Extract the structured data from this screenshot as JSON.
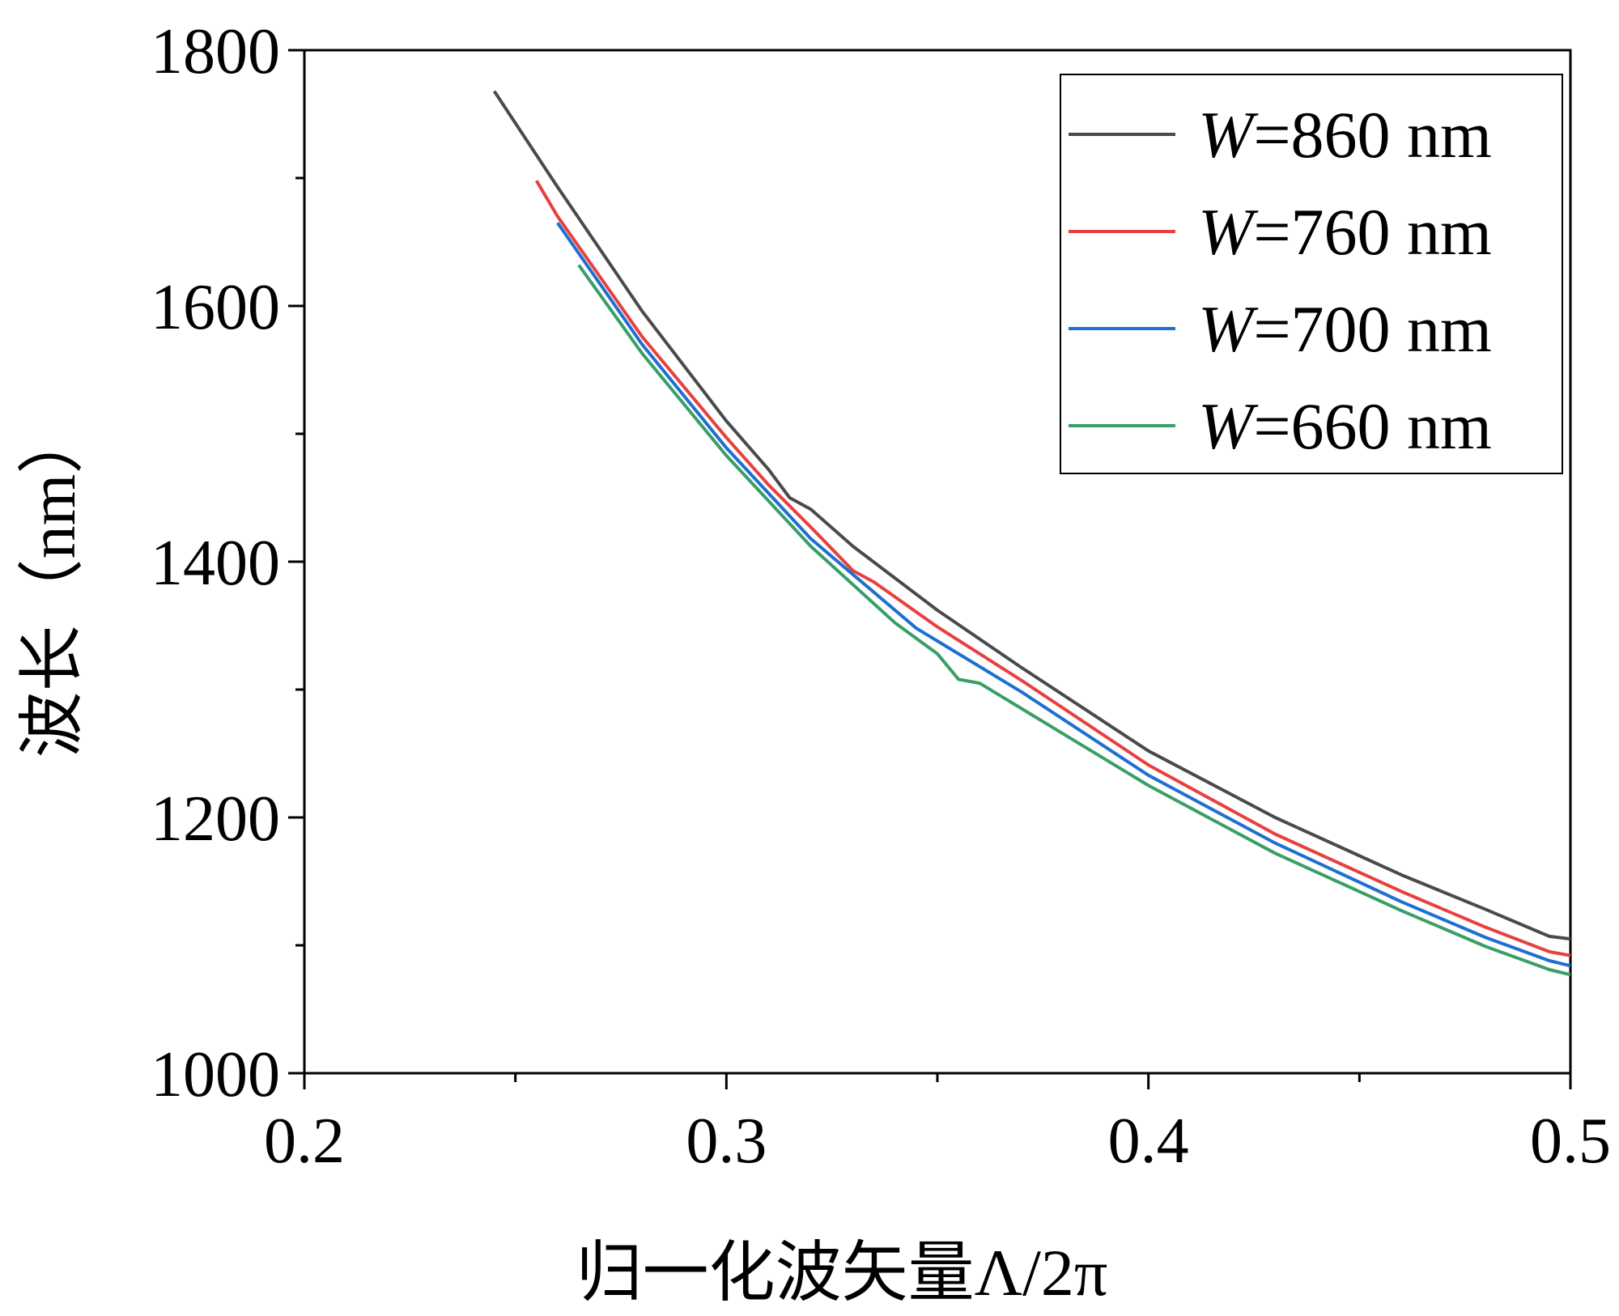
{
  "chart_data": {
    "type": "line",
    "xlabel": "归一化波矢量Λ/2π",
    "ylabel": "波长（nm）",
    "xlim": [
      0.2,
      0.5
    ],
    "ylim": [
      1000,
      1800
    ],
    "xticks": [
      "0.2",
      "0.3",
      "0.4",
      "0.5"
    ],
    "yticks": [
      "1000",
      "1200",
      "1400",
      "1600",
      "1800"
    ],
    "grid": false,
    "legend_position": "top-right",
    "series": [
      {
        "name": "W=860 nm",
        "label_var": "W",
        "label_rest": "=860 nm",
        "color": "#4a4a4a",
        "x": [
          0.245,
          0.26,
          0.28,
          0.3,
          0.31,
          0.315,
          0.32,
          0.33,
          0.35,
          0.37,
          0.4,
          0.43,
          0.46,
          0.48,
          0.495,
          0.5
        ],
        "y": [
          1768,
          1693,
          1596,
          1510,
          1472,
          1450,
          1441,
          1412,
          1362,
          1317,
          1252,
          1200,
          1155,
          1128,
          1107,
          1105
        ]
      },
      {
        "name": "W=760 nm",
        "label_var": "W",
        "label_rest": "=760 nm",
        "color": "#e8403f",
        "x": [
          0.255,
          0.26,
          0.28,
          0.3,
          0.31,
          0.32,
          0.325,
          0.33,
          0.335,
          0.35,
          0.37,
          0.4,
          0.43,
          0.46,
          0.48,
          0.495,
          0.5
        ],
        "y": [
          1698,
          1670,
          1576,
          1497,
          1460,
          1427,
          1410,
          1393,
          1384,
          1349,
          1307,
          1241,
          1187,
          1142,
          1114,
          1095,
          1092
        ]
      },
      {
        "name": "W=700 nm",
        "label_var": "W",
        "label_rest": "=700 nm",
        "color": "#1f6fd1",
        "x": [
          0.26,
          0.28,
          0.3,
          0.32,
          0.33,
          0.345,
          0.35,
          0.37,
          0.4,
          0.43,
          0.46,
          0.48,
          0.495,
          0.5
        ],
        "y": [
          1665,
          1570,
          1489,
          1418,
          1390,
          1348,
          1338,
          1298,
          1233,
          1180,
          1134,
          1106,
          1088,
          1084
        ]
      },
      {
        "name": "W=660 nm",
        "label_var": "W",
        "label_rest": "=660 nm",
        "color": "#3a9e68",
        "x": [
          0.265,
          0.28,
          0.3,
          0.32,
          0.34,
          0.35,
          0.355,
          0.36,
          0.38,
          0.4,
          0.43,
          0.46,
          0.48,
          0.495,
          0.5
        ],
        "y": [
          1632,
          1563,
          1483,
          1412,
          1352,
          1328,
          1308,
          1305,
          1265,
          1225,
          1172,
          1127,
          1099,
          1081,
          1077
        ]
      }
    ]
  }
}
